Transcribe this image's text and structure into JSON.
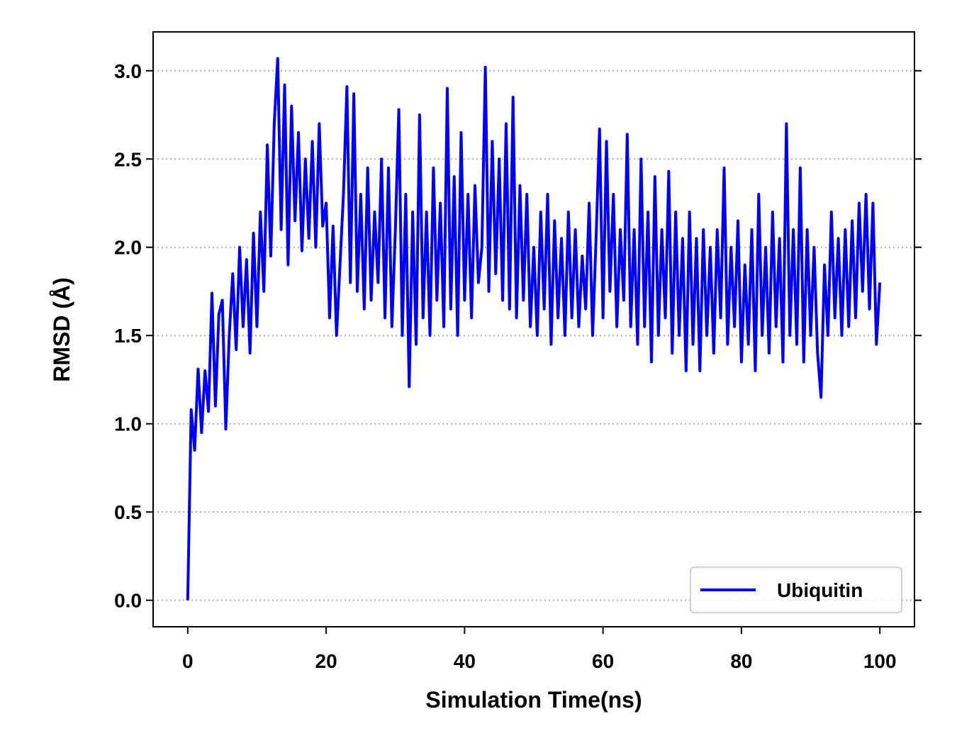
{
  "chart_data": {
    "type": "line",
    "xlabel": "Simulation Time(ns)",
    "ylabel": "RMSD (Å)",
    "x": [
      0,
      0.5,
      1,
      1.5,
      2,
      2.5,
      3,
      3.5,
      4,
      4.5,
      5,
      5.5,
      6,
      6.5,
      7,
      7.5,
      8,
      8.5,
      9,
      9.5,
      10,
      10.5,
      11,
      11.5,
      12,
      12.5,
      13,
      13.5,
      14,
      14.5,
      15,
      15.5,
      16,
      16.5,
      17,
      17.5,
      18,
      18.5,
      19,
      19.5,
      20,
      20.5,
      21,
      21.5,
      22,
      22.5,
      23,
      23.5,
      24,
      24.5,
      25,
      25.5,
      26,
      26.5,
      27,
      27.5,
      28,
      28.5,
      29,
      29.5,
      30,
      30.5,
      31,
      31.5,
      32,
      32.5,
      33,
      33.5,
      34,
      34.5,
      35,
      35.5,
      36,
      36.5,
      37,
      37.5,
      38,
      38.5,
      39,
      39.5,
      40,
      40.5,
      41,
      41.5,
      42,
      42.5,
      43,
      43.5,
      44,
      44.5,
      45,
      45.5,
      46,
      46.5,
      47,
      47.5,
      48,
      48.5,
      49,
      49.5,
      50,
      50.5,
      51,
      51.5,
      52,
      52.5,
      53,
      53.5,
      54,
      54.5,
      55,
      55.5,
      56,
      56.5,
      57,
      57.5,
      58,
      58.5,
      59,
      59.5,
      60,
      60.5,
      61,
      61.5,
      62,
      62.5,
      63,
      63.5,
      64,
      64.5,
      65,
      65.5,
      66,
      66.5,
      67,
      67.5,
      68,
      68.5,
      69,
      69.5,
      70,
      70.5,
      71,
      71.5,
      72,
      72.5,
      73,
      73.5,
      74,
      74.5,
      75,
      75.5,
      76,
      76.5,
      77,
      77.5,
      78,
      78.5,
      79,
      79.5,
      80,
      80.5,
      81,
      81.5,
      82,
      82.5,
      83,
      83.5,
      84,
      84.5,
      85,
      85.5,
      86,
      86.5,
      87,
      87.5,
      88,
      88.5,
      89,
      89.5,
      90,
      90.5,
      91,
      91.5,
      92,
      92.5,
      93,
      93.5,
      94,
      94.5,
      95,
      95.5,
      96,
      96.5,
      97,
      97.5,
      98,
      98.5,
      99,
      99.5,
      100
    ],
    "series": [
      {
        "name": "Ubiquitin",
        "color": "#0000ff",
        "values": [
          0,
          1.08,
          0.85,
          1.31,
          0.95,
          1.3,
          1.07,
          1.74,
          1.1,
          1.62,
          1.7,
          0.97,
          1.5,
          1.85,
          1.42,
          2.0,
          1.55,
          1.93,
          1.4,
          2.08,
          1.55,
          2.2,
          1.75,
          2.58,
          1.95,
          2.7,
          3.07,
          2.1,
          2.92,
          1.9,
          2.8,
          2.15,
          2.65,
          1.98,
          2.5,
          2.05,
          2.6,
          2.0,
          2.7,
          2.12,
          2.25,
          1.6,
          2.12,
          1.5,
          1.9,
          2.3,
          2.91,
          1.8,
          2.87,
          1.75,
          2.3,
          1.65,
          2.45,
          1.7,
          2.2,
          1.8,
          2.5,
          1.6,
          2.45,
          1.55,
          2.1,
          2.78,
          1.5,
          2.3,
          1.21,
          2.2,
          1.45,
          2.75,
          1.6,
          2.2,
          1.5,
          2.45,
          1.7,
          2.25,
          1.55,
          2.9,
          1.65,
          2.4,
          1.5,
          2.65,
          1.7,
          2.3,
          1.6,
          2.35,
          1.8,
          2.0,
          3.02,
          1.75,
          2.6,
          1.85,
          2.5,
          1.7,
          2.7,
          1.65,
          2.85,
          1.6,
          2.35,
          1.7,
          2.3,
          1.55,
          2.0,
          1.5,
          2.2,
          1.65,
          2.3,
          1.45,
          2.15,
          1.6,
          2.05,
          1.5,
          2.2,
          1.6,
          2.1,
          1.55,
          1.95,
          1.65,
          2.25,
          1.5,
          2.05,
          2.67,
          1.6,
          2.6,
          1.75,
          2.3,
          1.55,
          2.1,
          1.7,
          2.64,
          1.55,
          2.1,
          1.45,
          2.5,
          1.55,
          2.2,
          1.35,
          2.4,
          1.5,
          2.1,
          1.6,
          2.43,
          1.4,
          2.2,
          1.5,
          2.05,
          1.3,
          2.2,
          1.45,
          2.05,
          1.3,
          2.1,
          1.5,
          2.0,
          1.4,
          2.1,
          1.6,
          2.45,
          1.45,
          2.0,
          1.55,
          2.15,
          1.35,
          1.9,
          1.45,
          2.1,
          1.3,
          2.3,
          1.5,
          2.0,
          1.4,
          2.2,
          1.55,
          2.05,
          1.35,
          2.7,
          1.5,
          2.1,
          1.45,
          2.45,
          1.35,
          2.1,
          1.5,
          2.0,
          1.4,
          1.15,
          1.9,
          1.5,
          2.2,
          1.6,
          2.05,
          1.5,
          2.1,
          1.55,
          2.15,
          1.6,
          2.25,
          1.75,
          2.3,
          1.65,
          2.25,
          1.45,
          1.8
        ]
      }
    ],
    "xlim": [
      -5,
      105
    ],
    "ylim": [
      -0.15,
      3.22
    ],
    "xticks": [
      0,
      20,
      40,
      60,
      80,
      100
    ],
    "yticks": [
      {
        "value": 0,
        "label": "0.0"
      },
      0.5,
      {
        "value": 1,
        "label": "1.0"
      },
      1.5,
      {
        "value": 2,
        "label": "2.0"
      },
      2.5,
      {
        "value": 3,
        "label": "3.0"
      }
    ],
    "grid": "y",
    "legend": "lower right"
  }
}
